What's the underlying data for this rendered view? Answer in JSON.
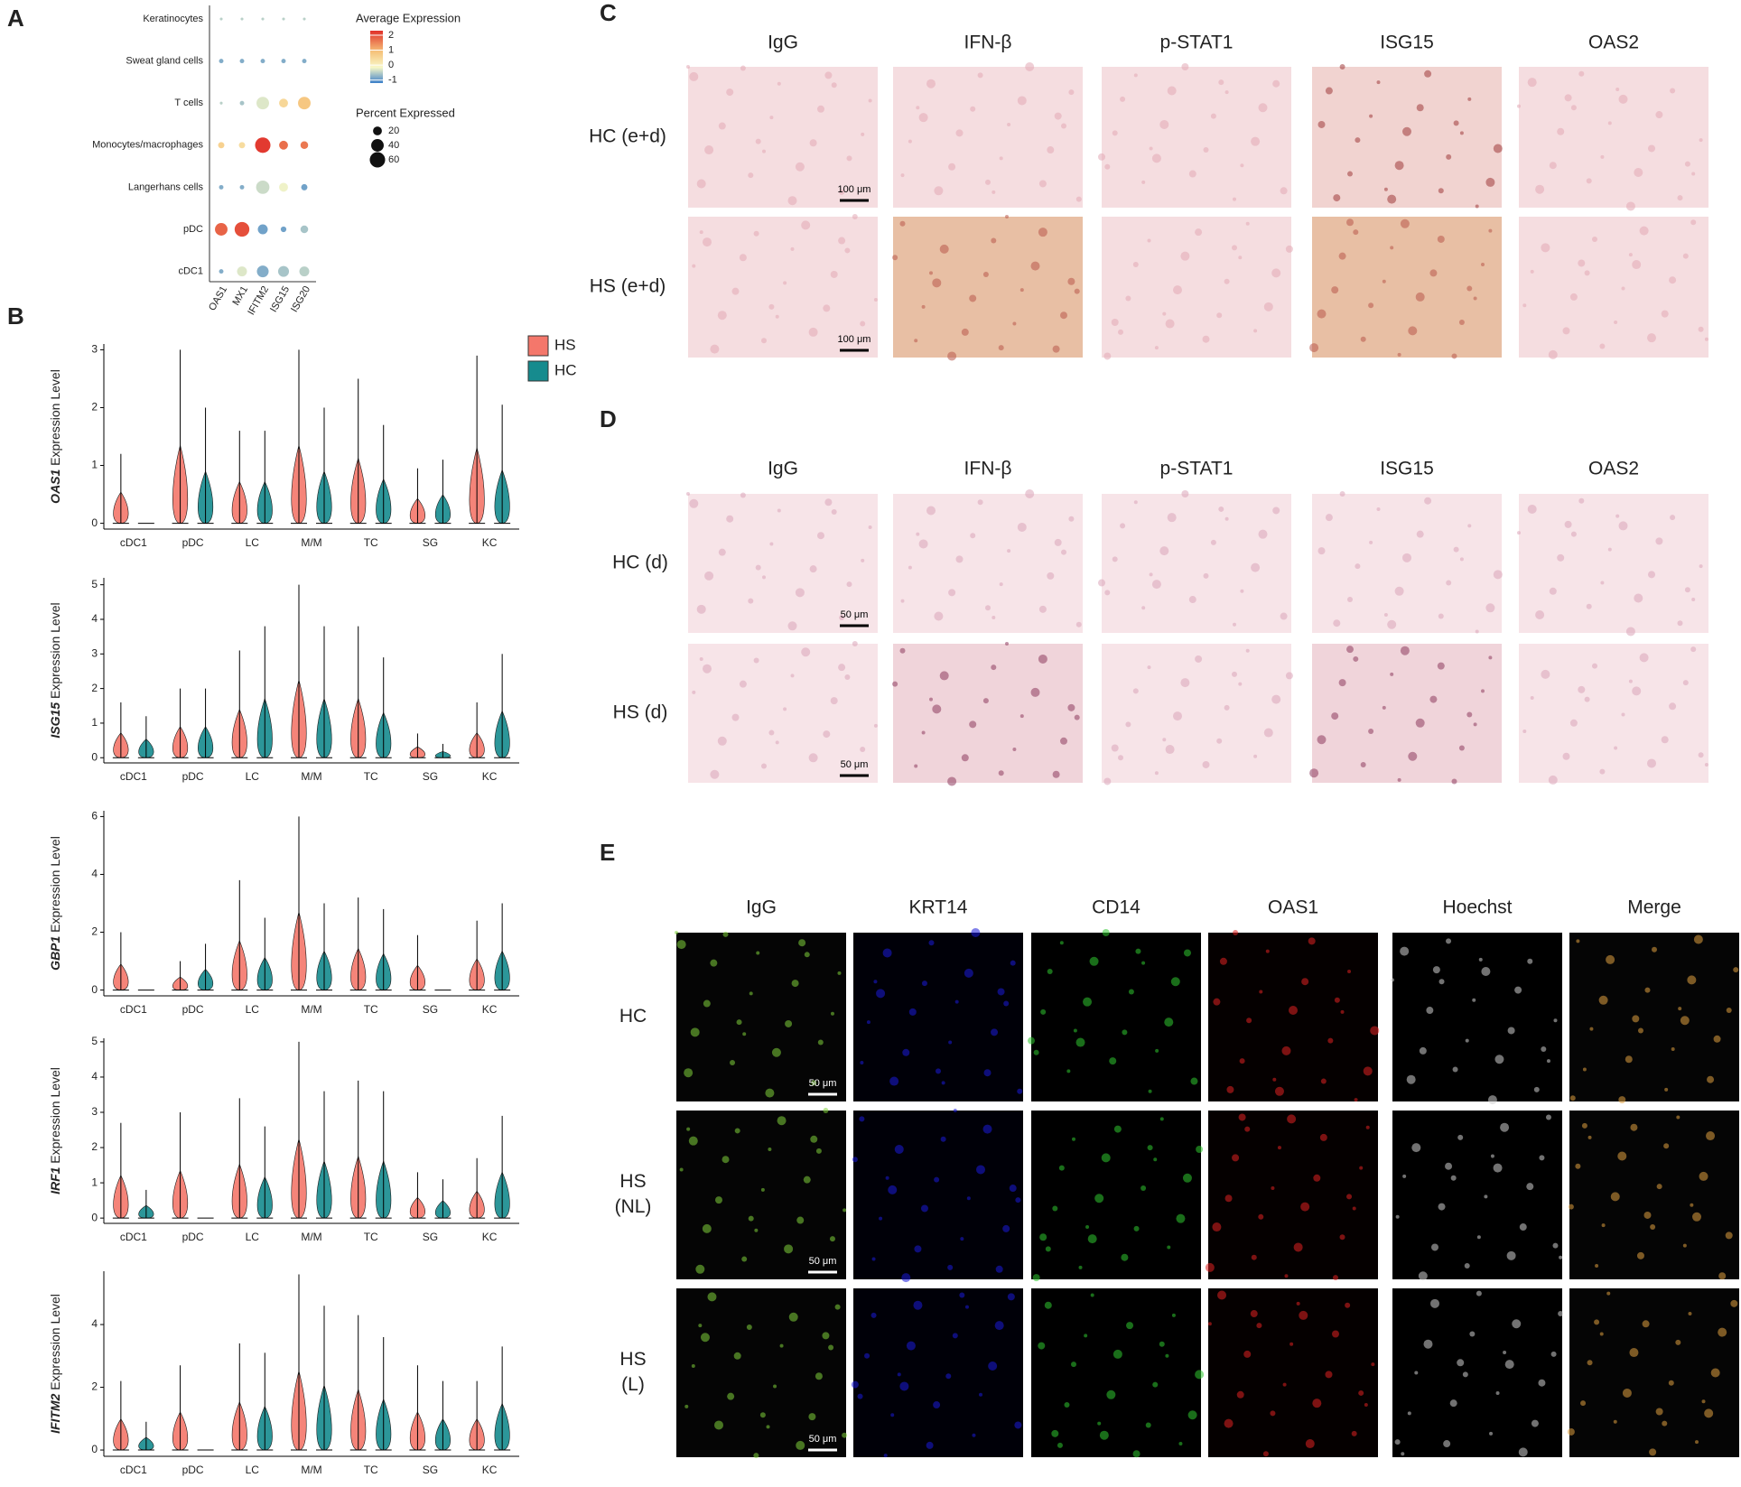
{
  "panel_labels": [
    "A",
    "B",
    "C",
    "D",
    "E"
  ],
  "chart_data": [
    {
      "type": "dot",
      "rows": [
        "Keratinocytes",
        "Sweat gland cells",
        "T cells",
        "Monocytes/macrophages",
        "Langerhans cells",
        "pDC",
        "cDC1"
      ],
      "columns": [
        "OAS1",
        "MX1",
        "IFITM2",
        "ISG15",
        "ISG20"
      ],
      "avg_expression": [
        [
          -0.5,
          -0.5,
          -0.5,
          -0.5,
          -0.5
        ],
        [
          -0.8,
          -0.8,
          -0.8,
          -0.8,
          -0.8
        ],
        [
          -0.5,
          -0.6,
          -0.3,
          0.5,
          0.8
        ],
        [
          0.6,
          0.4,
          2.2,
          1.7,
          1.6
        ],
        [
          -0.8,
          -0.8,
          -0.4,
          -0.2,
          -0.9
        ],
        [
          1.8,
          2.0,
          -0.9,
          -0.9,
          -0.6
        ],
        [
          -0.8,
          -0.3,
          -0.8,
          -0.6,
          -0.5
        ]
      ],
      "pct_expressed": [
        [
          2,
          2,
          2,
          2,
          2
        ],
        [
          5,
          5,
          5,
          5,
          5
        ],
        [
          2,
          5,
          40,
          20,
          40
        ],
        [
          10,
          10,
          60,
          20,
          15
        ],
        [
          5,
          5,
          45,
          20,
          10
        ],
        [
          40,
          55,
          25,
          8,
          15
        ],
        [
          5,
          25,
          35,
          30,
          25
        ]
      ],
      "color_title": "Average Expression",
      "color_lim": [
        -1.2,
        2.3
      ],
      "color_ticks": [
        2,
        1,
        0,
        -1
      ],
      "size_title": "Percent Expressed",
      "size_ticks": [
        20,
        40,
        60
      ]
    },
    {
      "type": "violin",
      "ylabel_gene": "OAS1",
      "ylabel_suffix": "Expression Level",
      "categories": [
        "cDC1",
        "pDC",
        "LC",
        "M/M",
        "TC",
        "SG",
        "KC"
      ],
      "series": [
        {
          "name": "HS",
          "color": "#f4776b",
          "values": [
            1.2,
            3.0,
            1.6,
            3.0,
            2.5,
            0.95,
            2.9
          ]
        },
        {
          "name": "HC",
          "color": "#168b8e",
          "values": [
            0,
            2.0,
            1.6,
            2.0,
            1.7,
            1.1,
            2.05
          ]
        }
      ],
      "ylim": [
        -0.1,
        3.1
      ],
      "yticks": [
        0,
        1,
        2,
        3
      ],
      "legend": "top-right"
    },
    {
      "type": "violin",
      "ylabel_gene": "ISG15",
      "ylabel_suffix": "Expression Level",
      "categories": [
        "cDC1",
        "pDC",
        "LC",
        "M/M",
        "TC",
        "SG",
        "KC"
      ],
      "series": [
        {
          "name": "HS",
          "color": "#f4776b",
          "values": [
            1.6,
            2.0,
            3.1,
            5.0,
            3.8,
            0.7,
            1.6
          ]
        },
        {
          "name": "HC",
          "color": "#168b8e",
          "values": [
            1.2,
            2.0,
            3.8,
            3.8,
            2.9,
            0.4,
            3.0
          ]
        }
      ],
      "ylim": [
        -0.15,
        5.2
      ],
      "yticks": [
        0,
        1,
        2,
        3,
        4,
        5
      ]
    },
    {
      "type": "violin",
      "ylabel_gene": "GBP1",
      "ylabel_suffix": "Expression Level",
      "categories": [
        "cDC1",
        "pDC",
        "LC",
        "M/M",
        "TC",
        "SG",
        "KC"
      ],
      "series": [
        {
          "name": "HS",
          "color": "#f4776b",
          "values": [
            2.0,
            1.0,
            3.8,
            6.0,
            3.2,
            1.9,
            2.4
          ]
        },
        {
          "name": "HC",
          "color": "#168b8e",
          "values": [
            0,
            1.6,
            2.5,
            3.0,
            2.8,
            0,
            3.0
          ]
        }
      ],
      "ylim": [
        -0.2,
        6.2
      ],
      "yticks": [
        0,
        2,
        4,
        6
      ]
    },
    {
      "type": "violin",
      "ylabel_gene": "IRF1",
      "ylabel_suffix": "Expression Level",
      "categories": [
        "cDC1",
        "pDC",
        "LC",
        "M/M",
        "TC",
        "SG",
        "KC"
      ],
      "series": [
        {
          "name": "HS",
          "color": "#f4776b",
          "values": [
            2.7,
            3.0,
            3.4,
            5.0,
            3.9,
            1.3,
            1.7
          ]
        },
        {
          "name": "HC",
          "color": "#168b8e",
          "values": [
            0.8,
            0,
            2.6,
            3.6,
            3.6,
            1.1,
            2.9
          ]
        }
      ],
      "ylim": [
        -0.15,
        5.1
      ],
      "yticks": [
        0,
        1,
        2,
        3,
        4,
        5
      ]
    },
    {
      "type": "violin",
      "ylabel_gene": "IFITM2",
      "ylabel_suffix": "Expression Level",
      "categories": [
        "cDC1",
        "pDC",
        "LC",
        "M/M",
        "TC",
        "SG",
        "KC"
      ],
      "series": [
        {
          "name": "HS",
          "color": "#f4776b",
          "values": [
            2.2,
            2.7,
            3.4,
            5.6,
            4.3,
            2.7,
            2.2
          ]
        },
        {
          "name": "HC",
          "color": "#168b8e",
          "values": [
            0.9,
            0,
            3.1,
            4.6,
            3.6,
            2.2,
            3.3
          ]
        }
      ],
      "ylim": [
        -0.2,
        5.7
      ],
      "yticks": [
        0,
        2,
        4
      ]
    }
  ],
  "panel_c": {
    "columns": [
      "IgG",
      "IFN-β",
      "p-STAT1",
      "ISG15",
      "OAS2"
    ],
    "rows": [
      "HC (e+d)",
      "HS (e+d)"
    ],
    "scale_bar": "100 μm"
  },
  "panel_d": {
    "columns": [
      "IgG",
      "IFN-β",
      "p-STAT1",
      "ISG15",
      "OAS2"
    ],
    "rows": [
      "HC (d)",
      "HS (d)"
    ],
    "scale_bar": "50 μm"
  },
  "panel_e": {
    "columns": [
      "IgG",
      "KRT14",
      "CD14",
      "OAS1",
      "Hoechst",
      "Merge"
    ],
    "rows": [
      [
        "HC"
      ],
      [
        "HS",
        "(NL)"
      ],
      [
        "HS",
        "(L)"
      ]
    ],
    "scale_bar": "50 μm"
  }
}
